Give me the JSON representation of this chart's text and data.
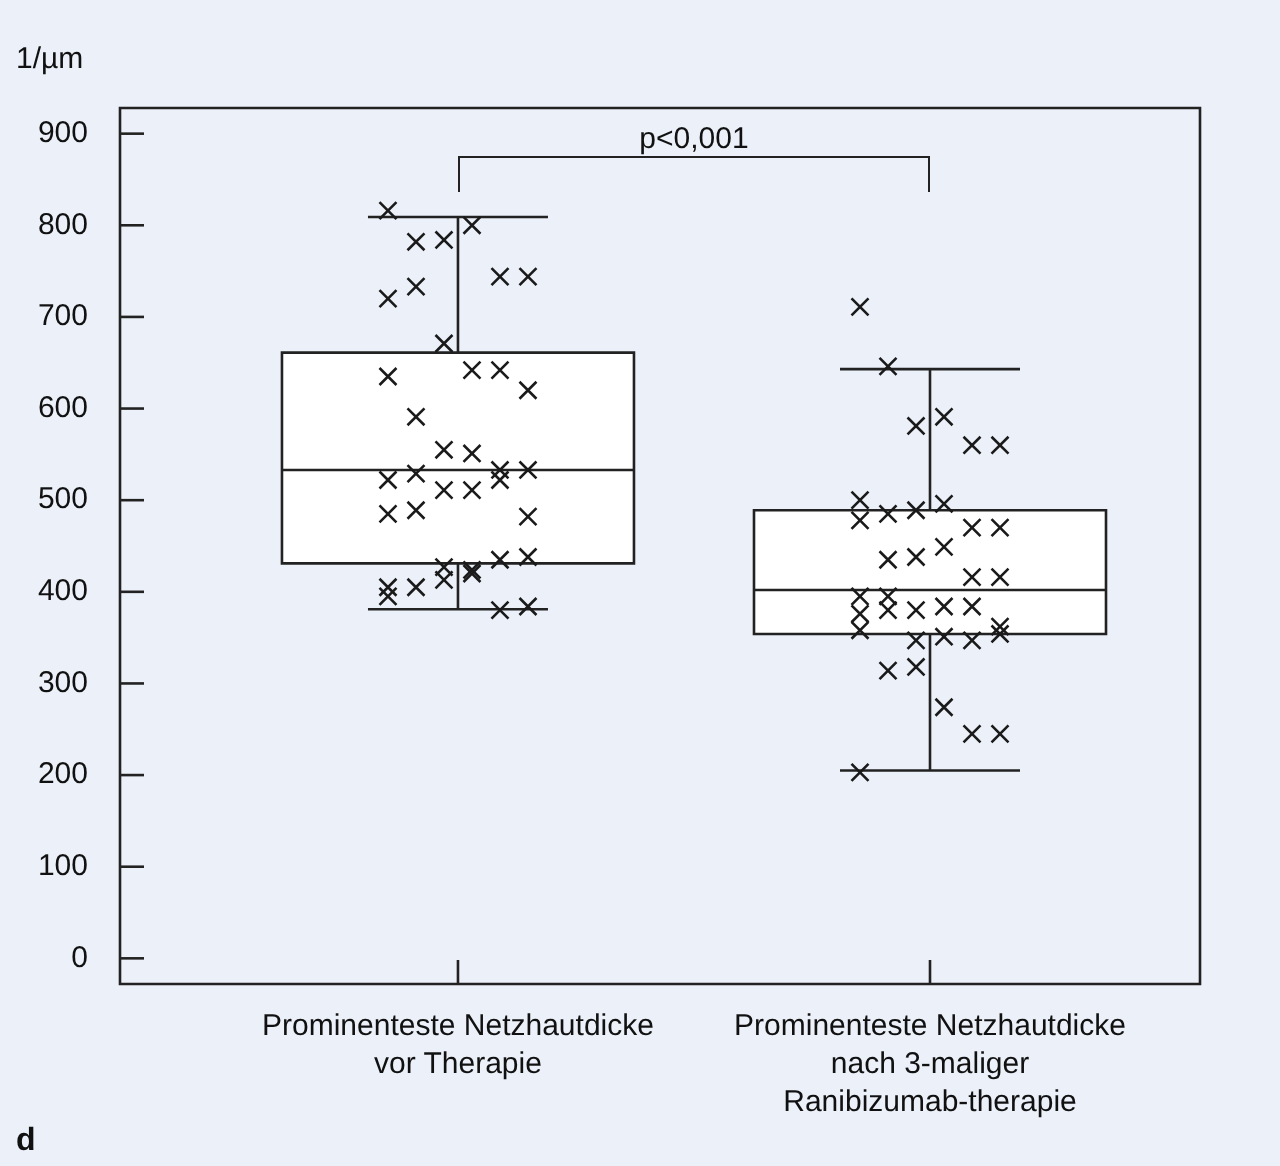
{
  "chart_data": {
    "type": "box",
    "ylabel": "1/µm",
    "categories": [
      "Prominenteste Netzhautdicke vor Therapie",
      "Prominenteste Netzhautdicke nach 3-maliger Ranibizumab-therapie"
    ],
    "boxes": [
      {
        "low": 381,
        "q1": 431,
        "median": 533,
        "q3": 661,
        "high": 809
      },
      {
        "low": 205,
        "q1": 354,
        "median": 402,
        "q3": 489,
        "high": 643
      }
    ],
    "series": [
      {
        "type": "scatter",
        "color": "#1a1a1a",
        "x": [
          "Prominenteste Netzhautdicke vor Therapie",
          "Prominenteste Netzhautdicke vor Therapie",
          "Prominenteste Netzhautdicke vor Therapie",
          "Prominenteste Netzhautdicke vor Therapie",
          "Prominenteste Netzhautdicke vor Therapie",
          "Prominenteste Netzhautdicke vor Therapie",
          "Prominenteste Netzhautdicke vor Therapie",
          "Prominenteste Netzhautdicke vor Therapie",
          "Prominenteste Netzhautdicke vor Therapie",
          "Prominenteste Netzhautdicke vor Therapie",
          "Prominenteste Netzhautdicke vor Therapie",
          "Prominenteste Netzhautdicke vor Therapie",
          "Prominenteste Netzhautdicke vor Therapie",
          "Prominenteste Netzhautdicke vor Therapie",
          "Prominenteste Netzhautdicke vor Therapie",
          "Prominenteste Netzhautdicke vor Therapie",
          "Prominenteste Netzhautdicke vor Therapie",
          "Prominenteste Netzhautdicke vor Therapie",
          "Prominenteste Netzhautdicke vor Therapie",
          "Prominenteste Netzhautdicke vor Therapie",
          "Prominenteste Netzhautdicke vor Therapie",
          "Prominenteste Netzhautdicke vor Therapie",
          "Prominenteste Netzhautdicke vor Therapie",
          "Prominenteste Netzhautdicke vor Therapie",
          "Prominenteste Netzhautdicke vor Therapie",
          "Prominenteste Netzhautdicke vor Therapie",
          "Prominenteste Netzhautdicke vor Therapie",
          "Prominenteste Netzhautdicke vor Therapie",
          "Prominenteste Netzhautdicke vor Therapie",
          "Prominenteste Netzhautdicke vor Therapie",
          "Prominenteste Netzhautdicke vor Therapie",
          "Prominenteste Netzhautdicke vor Therapie",
          "Prominenteste Netzhautdicke vor Therapie",
          "Prominenteste Netzhautdicke vor Therapie",
          "Prominenteste Netzhautdicke vor Therapie",
          "Prominenteste Netzhautdicke vor Therapie",
          "Prominenteste Netzhautdicke vor Therapie"
        ],
        "values": [
          816,
          782,
          784,
          800,
          744,
          744,
          720,
          733,
          671,
          642,
          642,
          620,
          635,
          591,
          555,
          551,
          533,
          533,
          522,
          529,
          511,
          511,
          522,
          482,
          485,
          489,
          427,
          424,
          435,
          438,
          405,
          405,
          413,
          420,
          380,
          384,
          395
        ]
      },
      {
        "type": "scatter",
        "color": "#1a1a1a",
        "x": [
          "Prominenteste Netzhautdicke nach 3-maliger Ranibizumab-therapie",
          "Prominenteste Netzhautdicke nach 3-maliger Ranibizumab-therapie",
          "Prominenteste Netzhautdicke nach 3-maliger Ranibizumab-therapie",
          "Prominenteste Netzhautdicke nach 3-maliger Ranibizumab-therapie",
          "Prominenteste Netzhautdicke nach 3-maliger Ranibizumab-therapie",
          "Prominenteste Netzhautdicke nach 3-maliger Ranibizumab-therapie",
          "Prominenteste Netzhautdicke nach 3-maliger Ranibizumab-therapie",
          "Prominenteste Netzhautdicke nach 3-maliger Ranibizumab-therapie",
          "Prominenteste Netzhautdicke nach 3-maliger Ranibizumab-therapie",
          "Prominenteste Netzhautdicke nach 3-maliger Ranibizumab-therapie",
          "Prominenteste Netzhautdicke nach 3-maliger Ranibizumab-therapie",
          "Prominenteste Netzhautdicke nach 3-maliger Ranibizumab-therapie",
          "Prominenteste Netzhautdicke nach 3-maliger Ranibizumab-therapie",
          "Prominenteste Netzhautdicke nach 3-maliger Ranibizumab-therapie",
          "Prominenteste Netzhautdicke nach 3-maliger Ranibizumab-therapie",
          "Prominenteste Netzhautdicke nach 3-maliger Ranibizumab-therapie",
          "Prominenteste Netzhautdicke nach 3-maliger Ranibizumab-therapie",
          "Prominenteste Netzhautdicke nach 3-maliger Ranibizumab-therapie",
          "Prominenteste Netzhautdicke nach 3-maliger Ranibizumab-therapie",
          "Prominenteste Netzhautdicke nach 3-maliger Ranibizumab-therapie",
          "Prominenteste Netzhautdicke nach 3-maliger Ranibizumab-therapie",
          "Prominenteste Netzhautdicke nach 3-maliger Ranibizumab-therapie",
          "Prominenteste Netzhautdicke nach 3-maliger Ranibizumab-therapie",
          "Prominenteste Netzhautdicke nach 3-maliger Ranibizumab-therapie",
          "Prominenteste Netzhautdicke nach 3-maliger Ranibizumab-therapie",
          "Prominenteste Netzhautdicke nach 3-maliger Ranibizumab-therapie",
          "Prominenteste Netzhautdicke nach 3-maliger Ranibizumab-therapie",
          "Prominenteste Netzhautdicke nach 3-maliger Ranibizumab-therapie",
          "Prominenteste Netzhautdicke nach 3-maliger Ranibizumab-therapie",
          "Prominenteste Netzhautdicke nach 3-maliger Ranibizumab-therapie",
          "Prominenteste Netzhautdicke nach 3-maliger Ranibizumab-therapie",
          "Prominenteste Netzhautdicke nach 3-maliger Ranibizumab-therapie",
          "Prominenteste Netzhautdicke nach 3-maliger Ranibizumab-therapie",
          "Prominenteste Netzhautdicke nach 3-maliger Ranibizumab-therapie",
          "Prominenteste Netzhautdicke nach 3-maliger Ranibizumab-therapie",
          "Prominenteste Netzhautdicke nach 3-maliger Ranibizumab-therapie",
          "Prominenteste Netzhautdicke nach 3-maliger Ranibizumab-therapie"
        ],
        "values": [
          711,
          646,
          581,
          591,
          560,
          560,
          500,
          485,
          489,
          496,
          470,
          470,
          478,
          435,
          438,
          449,
          416,
          416,
          395,
          395,
          380,
          384,
          384,
          362,
          376,
          380,
          347,
          351,
          347,
          354,
          358,
          314,
          318,
          274,
          245,
          245,
          203
        ]
      }
    ],
    "marker": "cross",
    "ylim": [
      -28,
      928
    ],
    "yticks": [
      0,
      100,
      200,
      300,
      400,
      500,
      600,
      700,
      800,
      900
    ],
    "legend": false,
    "grid": false,
    "annotations": [
      "p<0,001",
      "d"
    ]
  }
}
